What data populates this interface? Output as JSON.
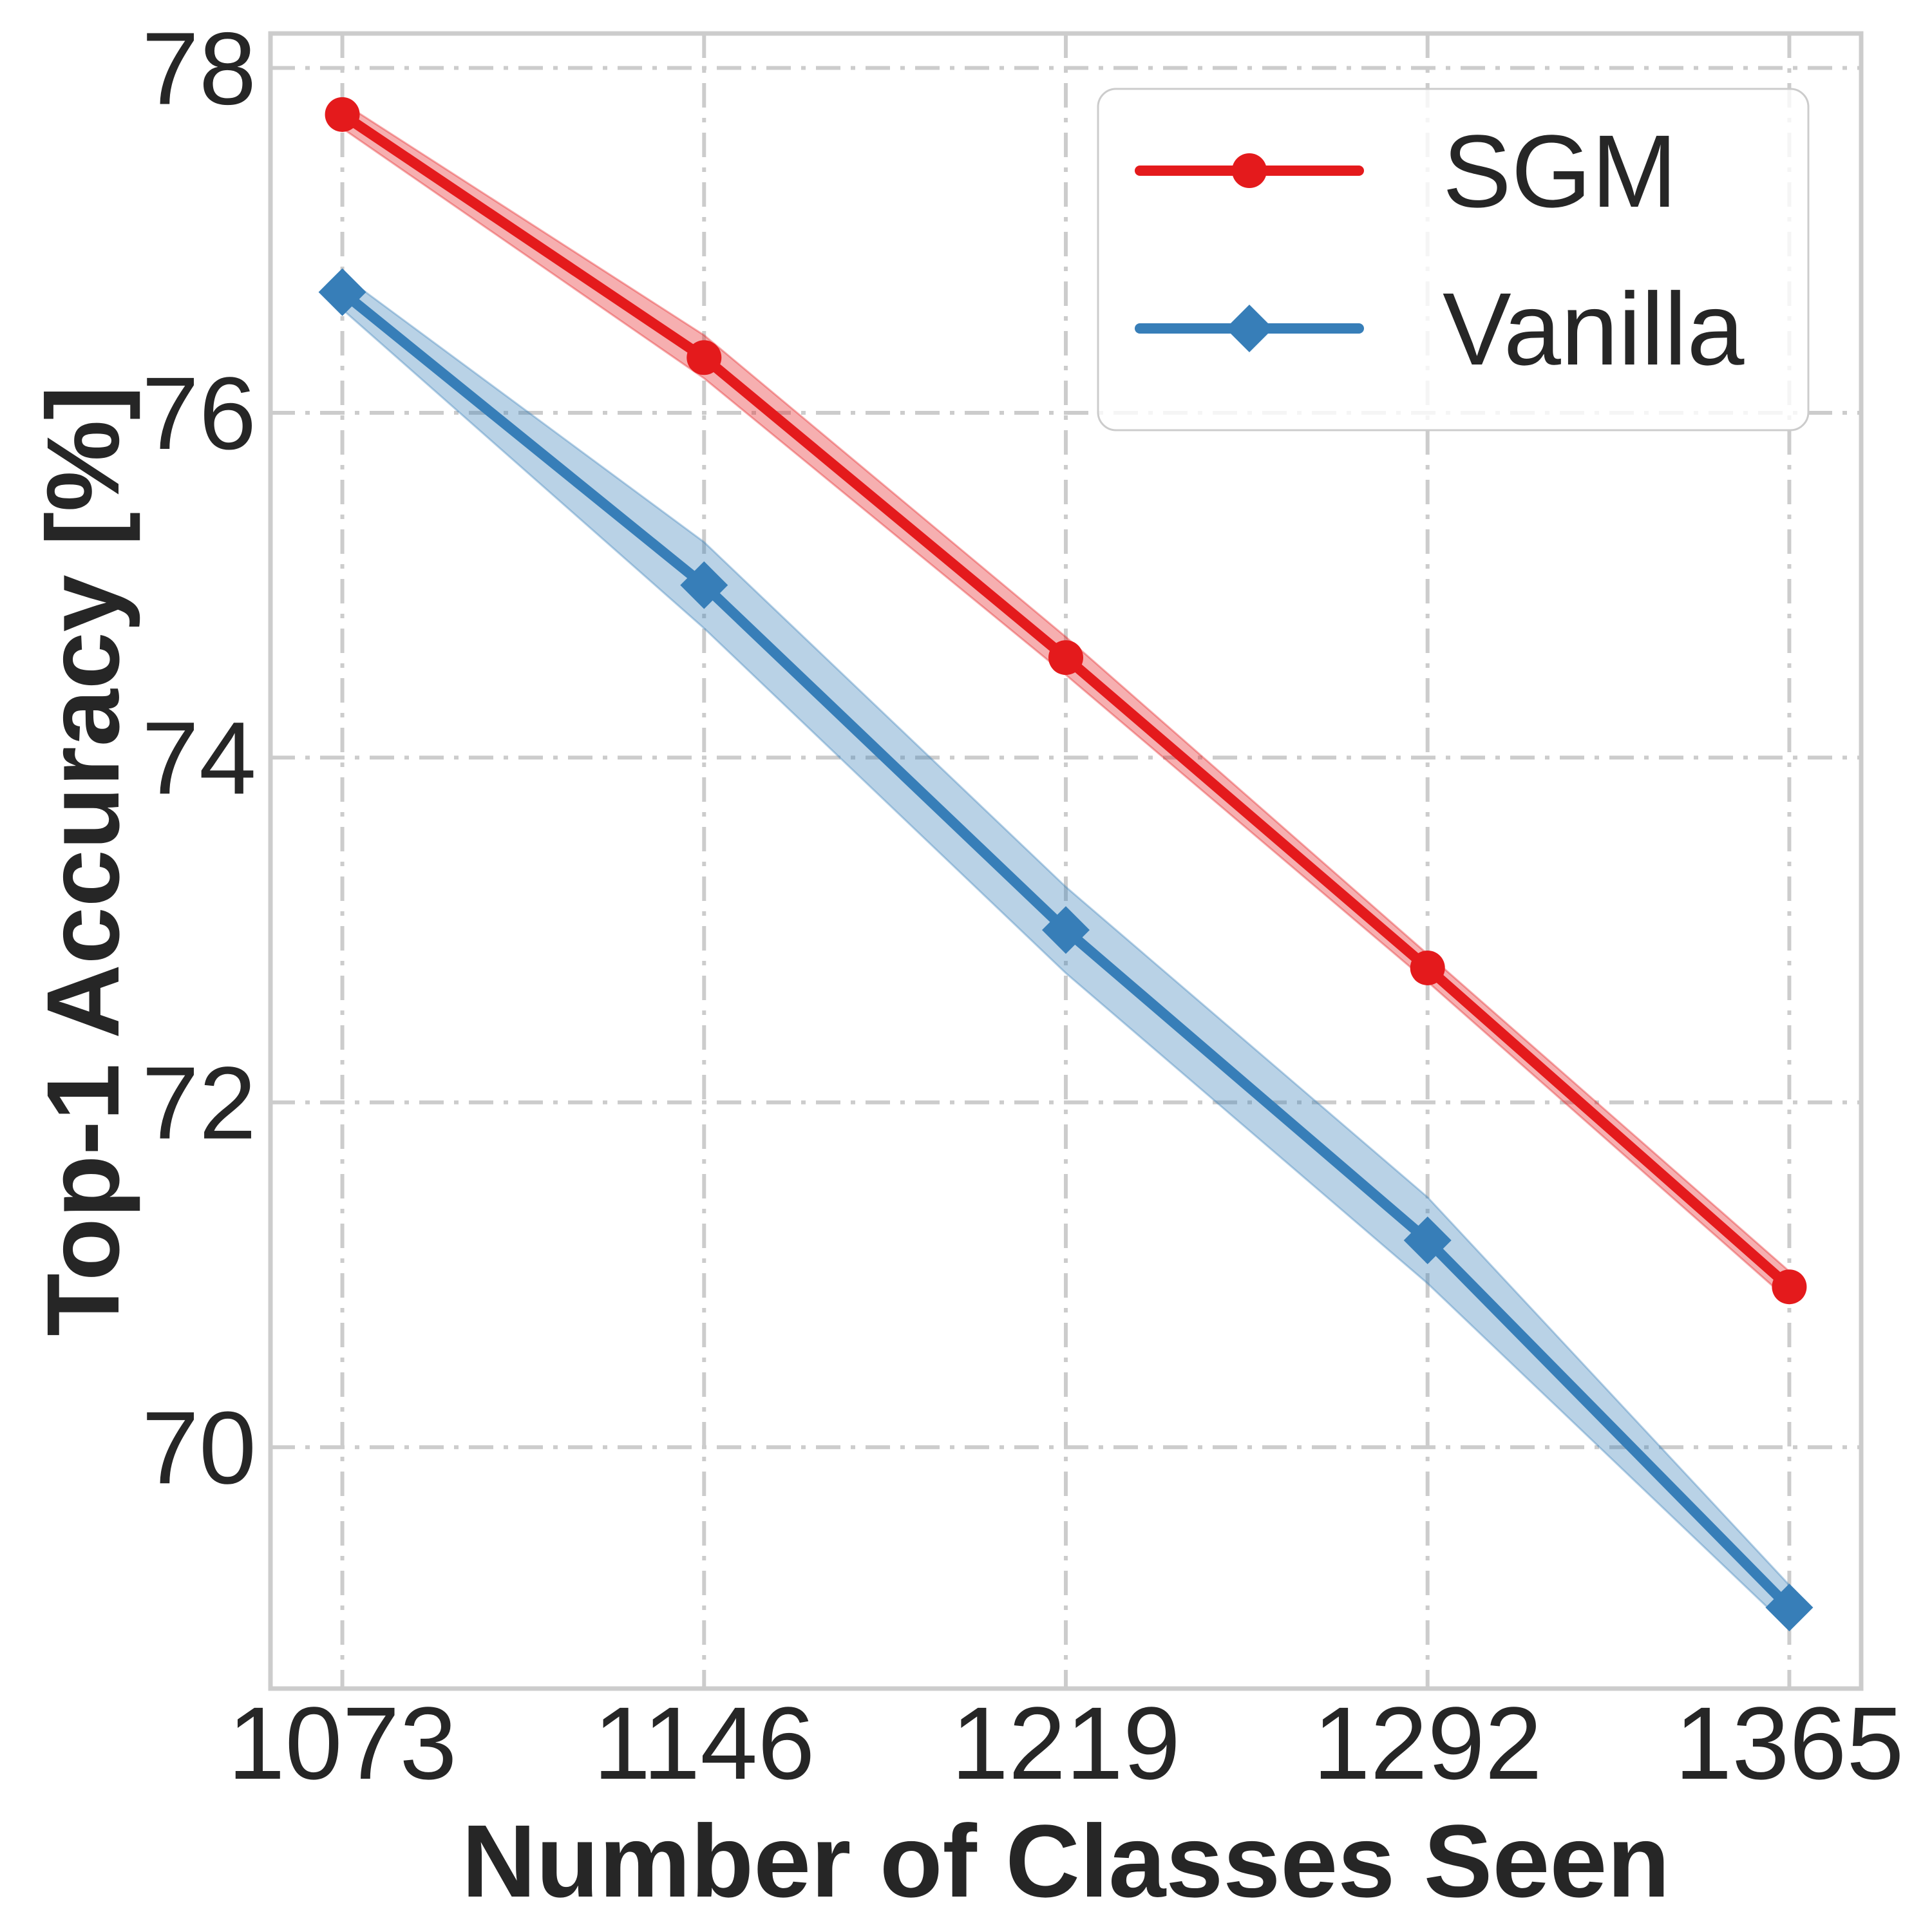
{
  "chart_data": {
    "type": "line",
    "title": "",
    "xlabel": "Number of Classes Seen",
    "ylabel": "Top-1 Accuracy [%]",
    "x": [
      1073,
      1146,
      1219,
      1292,
      1365
    ],
    "x_tick_labels": [
      "1073",
      "1146",
      "1219",
      "1292",
      "1365"
    ],
    "y_ticks": [
      70,
      72,
      74,
      76,
      78
    ],
    "y_tick_labels": [
      "70",
      "72",
      "74",
      "76",
      "78"
    ],
    "xlim": [
      1058.5,
      1379.5
    ],
    "ylim": [
      68.6,
      78.2
    ],
    "grid": true,
    "legend_position": "top-right",
    "series": [
      {
        "name": "SGM",
        "color": "#e41a1c",
        "marker": "circle",
        "values": [
          77.73,
          76.32,
          74.58,
          72.78,
          70.93
        ],
        "band_lower": [
          77.65,
          76.2,
          74.48,
          72.7,
          70.85
        ],
        "band_upper": [
          77.8,
          76.45,
          74.7,
          72.86,
          71.02
        ]
      },
      {
        "name": "Vanilla",
        "color": "#377eb8",
        "marker": "diamond",
        "values": [
          76.7,
          75.0,
          73.0,
          71.2,
          69.07
        ],
        "band_lower": [
          76.6,
          74.75,
          72.75,
          70.95,
          68.95
        ],
        "band_upper": [
          76.8,
          75.25,
          73.25,
          71.45,
          69.2
        ]
      }
    ]
  }
}
